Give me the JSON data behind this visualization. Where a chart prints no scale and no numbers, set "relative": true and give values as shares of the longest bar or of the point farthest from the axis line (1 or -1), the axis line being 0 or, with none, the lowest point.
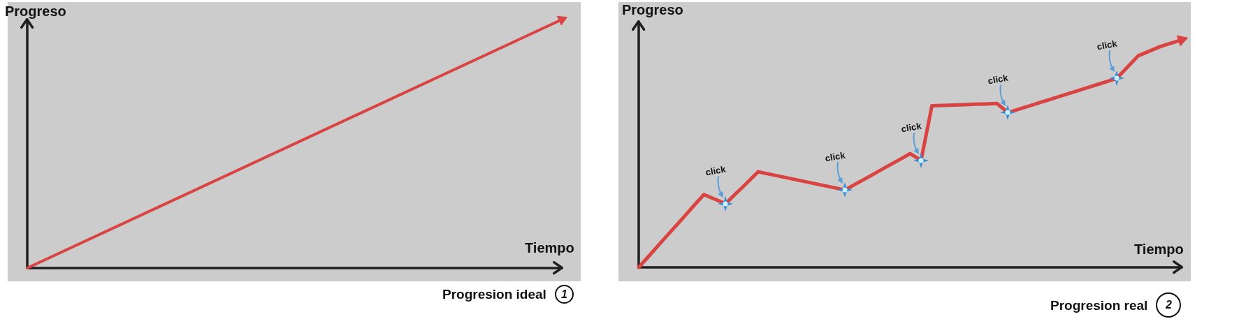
{
  "chart_data": [
    {
      "type": "line",
      "title": "Progresion ideal",
      "subtitle": "1",
      "xlabel": "Tiempo",
      "ylabel": "Progreso",
      "relative": true,
      "categories": [
        null,
        null
      ],
      "series": [
        {
          "color": "#d94341",
          "values": [
            0,
            1
          ]
        }
      ]
    },
    {
      "type": "line",
      "title": "Progresion real",
      "subtitle": "2",
      "xlabel": "Tiempo",
      "ylabel": "Progreso",
      "relative": true,
      "categories": [
        null,
        null,
        null,
        null,
        null,
        null,
        null,
        null,
        null,
        null,
        null,
        null,
        null,
        null,
        null,
        null,
        null,
        null,
        null,
        null,
        null,
        null,
        null,
        null,
        null,
        null,
        null,
        null,
        null,
        null,
        null,
        null,
        null,
        null,
        null,
        null,
        null,
        null,
        null,
        null,
        null,
        null,
        null,
        null,
        null,
        null,
        null,
        null,
        null,
        null,
        null
      ],
      "series": [
        {
          "color": "#d94341",
          "values": [
            0,
            0.053,
            0.107,
            0.16,
            0.213,
            0.267,
            0.32,
            0.3,
            0.28,
            0.327,
            0.373,
            0.42,
            0.41,
            0.4,
            0.39,
            0.38,
            0.37,
            0.36,
            0.35,
            0.34,
            0.367,
            0.393,
            0.42,
            0.447,
            0.473,
            0.5,
            0.47,
            0.71,
            0.712,
            0.713,
            0.715,
            0.717,
            0.718,
            0.72,
            0.68,
            0.695,
            0.71,
            0.725,
            0.74,
            0.755,
            0.77,
            0.785,
            0.8,
            0.815,
            0.83,
            0.88,
            0.93,
            0.95,
            0.97,
            0.985,
            1
          ]
        }
      ],
      "annotations": [
        {
          "text": "click",
          "y": 0.28
        },
        {
          "text": "click",
          "y": 0.34
        },
        {
          "text": "click",
          "y": 0.47
        },
        {
          "text": "click",
          "y": 0.68
        },
        {
          "text": "click",
          "y": 0.83
        }
      ]
    }
  ]
}
